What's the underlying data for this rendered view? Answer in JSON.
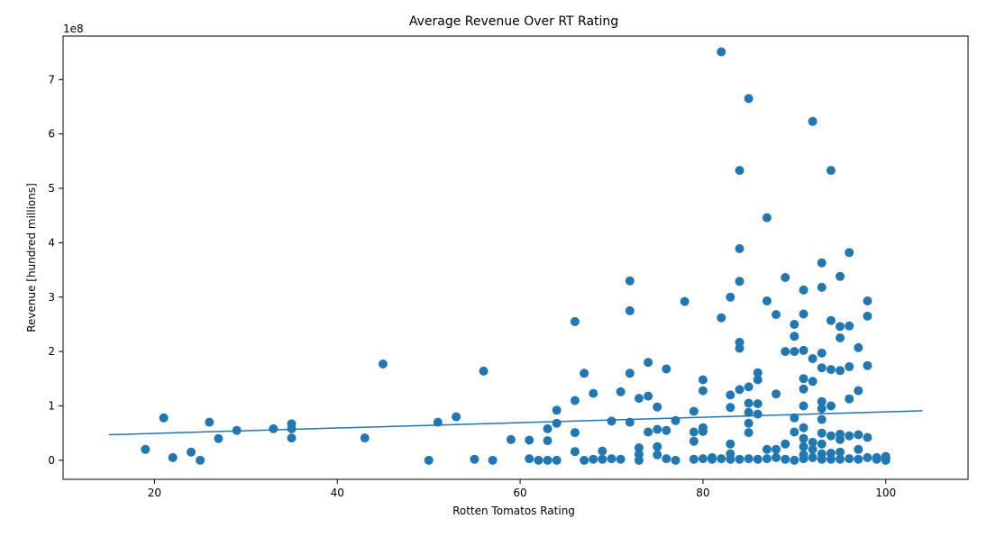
{
  "chart_data": {
    "type": "scatter",
    "title": "Average Revenue Over RT Rating",
    "xlabel": "Rotten Tomatos Rating",
    "ylabel": "Revenue [hundred millions]",
    "y_offset_label": "1e8",
    "xlim": [
      10,
      109
    ],
    "ylim": [
      -0.35,
      7.8
    ],
    "x_ticks": [
      20,
      40,
      60,
      80,
      100
    ],
    "y_ticks": [
      0,
      1,
      2,
      3,
      4,
      5,
      6,
      7
    ],
    "grid": false,
    "legend": "none",
    "colors": {
      "points": "#1f77b4",
      "trend": "#1f77b4",
      "axes": "#000000"
    },
    "trend_line": {
      "x": [
        15,
        104
      ],
      "y": [
        0.47,
        0.91
      ]
    },
    "series": [
      {
        "points": [
          [
            19,
            0.2
          ],
          [
            21,
            0.78
          ],
          [
            22,
            0.05
          ],
          [
            24,
            0.15
          ],
          [
            25,
            0.0
          ],
          [
            26,
            0.7
          ],
          [
            27,
            0.4
          ],
          [
            29,
            0.55
          ],
          [
            33,
            0.58
          ],
          [
            35,
            0.67
          ],
          [
            35,
            0.58
          ],
          [
            35,
            0.41
          ],
          [
            43,
            0.41
          ],
          [
            45,
            1.77
          ],
          [
            50,
            0.0
          ],
          [
            51,
            0.7
          ],
          [
            53,
            0.8
          ],
          [
            55,
            0.02
          ],
          [
            56,
            1.64
          ],
          [
            57,
            0.0
          ],
          [
            59,
            0.38
          ],
          [
            61,
            0.03
          ],
          [
            61,
            0.37
          ],
          [
            62,
            0.0
          ],
          [
            63,
            0.58
          ],
          [
            63,
            0.36
          ],
          [
            63,
            0.0
          ],
          [
            64,
            0.92
          ],
          [
            64,
            0.68
          ],
          [
            64,
            0.0
          ],
          [
            66,
            2.55
          ],
          [
            66,
            1.1
          ],
          [
            66,
            0.51
          ],
          [
            66,
            0.16
          ],
          [
            67,
            1.6
          ],
          [
            67,
            0.0
          ],
          [
            68,
            1.23
          ],
          [
            68,
            0.02
          ],
          [
            69,
            0.17
          ],
          [
            69,
            0.02
          ],
          [
            70,
            0.72
          ],
          [
            70,
            0.03
          ],
          [
            71,
            1.26
          ],
          [
            71,
            0.02
          ],
          [
            72,
            3.3
          ],
          [
            72,
            2.75
          ],
          [
            72,
            1.6
          ],
          [
            72,
            0.7
          ],
          [
            73,
            1.14
          ],
          [
            73,
            0.23
          ],
          [
            73,
            0.11
          ],
          [
            73,
            0.0
          ],
          [
            74,
            1.8
          ],
          [
            74,
            1.18
          ],
          [
            74,
            0.52
          ],
          [
            75,
            0.98
          ],
          [
            75,
            0.57
          ],
          [
            75,
            0.25
          ],
          [
            75,
            0.1
          ],
          [
            76,
            1.68
          ],
          [
            76,
            0.55
          ],
          [
            76,
            0.03
          ],
          [
            77,
            0.73
          ],
          [
            77,
            0.0
          ],
          [
            78,
            2.92
          ],
          [
            79,
            0.9
          ],
          [
            79,
            0.52
          ],
          [
            79,
            0.35
          ],
          [
            79,
            0.02
          ],
          [
            80,
            1.48
          ],
          [
            80,
            1.28
          ],
          [
            80,
            0.6
          ],
          [
            80,
            0.53
          ],
          [
            80,
            0.03
          ],
          [
            81,
            0.02
          ],
          [
            81,
            0.05
          ],
          [
            82,
            7.51
          ],
          [
            82,
            2.62
          ],
          [
            82,
            0.03
          ],
          [
            83,
            3.0
          ],
          [
            83,
            1.2
          ],
          [
            83,
            0.97
          ],
          [
            83,
            0.3
          ],
          [
            83,
            0.12
          ],
          [
            83,
            0.02
          ],
          [
            84,
            5.33
          ],
          [
            84,
            3.89
          ],
          [
            84,
            3.29
          ],
          [
            84,
            2.17
          ],
          [
            84,
            2.06
          ],
          [
            84,
            1.3
          ],
          [
            84,
            0.02
          ],
          [
            85,
            6.65
          ],
          [
            85,
            1.35
          ],
          [
            85,
            1.05
          ],
          [
            85,
            0.88
          ],
          [
            85,
            0.68
          ],
          [
            85,
            0.51
          ],
          [
            85,
            0.03
          ],
          [
            86,
            1.61
          ],
          [
            86,
            1.48
          ],
          [
            86,
            1.04
          ],
          [
            86,
            0.85
          ],
          [
            86,
            0.02
          ],
          [
            87,
            4.46
          ],
          [
            87,
            2.93
          ],
          [
            87,
            0.2
          ],
          [
            87,
            0.03
          ],
          [
            88,
            2.68
          ],
          [
            88,
            1.22
          ],
          [
            88,
            0.2
          ],
          [
            88,
            0.05
          ],
          [
            89,
            3.36
          ],
          [
            89,
            2.0
          ],
          [
            89,
            0.3
          ],
          [
            89,
            0.02
          ],
          [
            90,
            2.5
          ],
          [
            90,
            2.28
          ],
          [
            90,
            2.0
          ],
          [
            90,
            0.78
          ],
          [
            90,
            0.52
          ],
          [
            90,
            0.0
          ],
          [
            91,
            3.13
          ],
          [
            91,
            2.69
          ],
          [
            91,
            2.02
          ],
          [
            91,
            1.5
          ],
          [
            91,
            1.31
          ],
          [
            91,
            1.0
          ],
          [
            91,
            0.6
          ],
          [
            91,
            0.4
          ],
          [
            91,
            0.25
          ],
          [
            91,
            0.1
          ],
          [
            91,
            0.03
          ],
          [
            92,
            6.23
          ],
          [
            92,
            1.87
          ],
          [
            92,
            1.45
          ],
          [
            92,
            0.33
          ],
          [
            92,
            0.2
          ],
          [
            92,
            0.05
          ],
          [
            93,
            3.63
          ],
          [
            93,
            3.18
          ],
          [
            93,
            1.97
          ],
          [
            93,
            1.7
          ],
          [
            93,
            1.08
          ],
          [
            93,
            0.95
          ],
          [
            93,
            0.75
          ],
          [
            93,
            0.5
          ],
          [
            93,
            0.3
          ],
          [
            93,
            0.12
          ],
          [
            93,
            0.02
          ],
          [
            94,
            5.33
          ],
          [
            94,
            2.57
          ],
          [
            94,
            1.67
          ],
          [
            94,
            1.0
          ],
          [
            94,
            0.45
          ],
          [
            94,
            0.13
          ],
          [
            94,
            0.02
          ],
          [
            95,
            3.38
          ],
          [
            95,
            2.46
          ],
          [
            95,
            2.25
          ],
          [
            95,
            1.65
          ],
          [
            95,
            0.48
          ],
          [
            95,
            0.38
          ],
          [
            95,
            0.15
          ],
          [
            95,
            0.02
          ],
          [
            96,
            3.82
          ],
          [
            96,
            2.47
          ],
          [
            96,
            1.72
          ],
          [
            96,
            1.13
          ],
          [
            96,
            0.45
          ],
          [
            96,
            0.03
          ],
          [
            97,
            2.07
          ],
          [
            97,
            1.28
          ],
          [
            97,
            0.47
          ],
          [
            97,
            0.2
          ],
          [
            97,
            0.02
          ],
          [
            98,
            2.93
          ],
          [
            98,
            2.65
          ],
          [
            98,
            1.74
          ],
          [
            98,
            0.42
          ],
          [
            98,
            0.05
          ],
          [
            99,
            0.05
          ],
          [
            99,
            0.02
          ],
          [
            100,
            0.07
          ],
          [
            100,
            0.03
          ],
          [
            100,
            0.0
          ]
        ]
      }
    ]
  }
}
